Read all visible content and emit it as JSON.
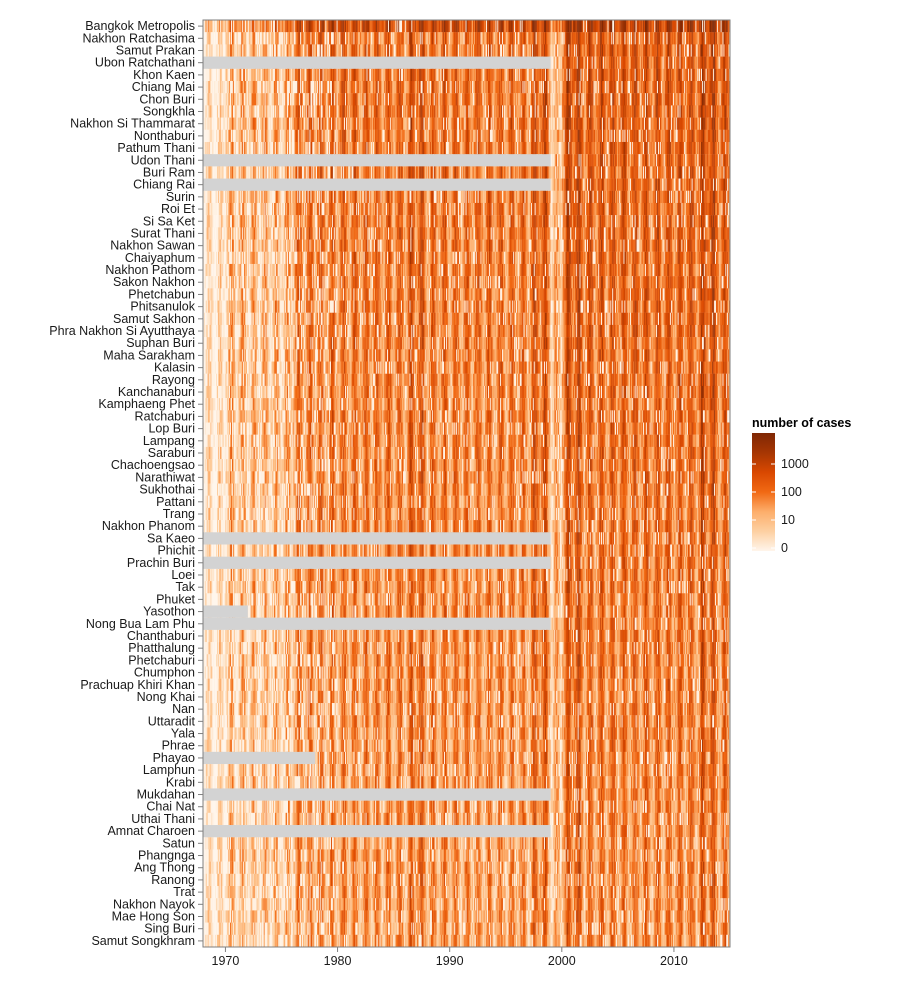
{
  "chart_data": {
    "type": "heatmap",
    "title": "",
    "xlabel": "",
    "ylabel": "",
    "x_range": [
      1968,
      2015
    ],
    "x_ticks": [
      1970,
      1980,
      1990,
      2000,
      2010
    ],
    "provinces": [
      "Bangkok Metropolis",
      "Nakhon Ratchasima",
      "Samut Prakan",
      "Ubon Ratchathani",
      "Khon Kaen",
      "Chiang Mai",
      "Chon Buri",
      "Songkhla",
      "Nakhon Si Thammarat",
      "Nonthaburi",
      "Pathum Thani",
      "Udon Thani",
      "Buri Ram",
      "Chiang Rai",
      "Surin",
      "Roi Et",
      "Si Sa Ket",
      "Surat Thani",
      "Nakhon Sawan",
      "Chaiyaphum",
      "Nakhon Pathom",
      "Sakon Nakhon",
      "Phetchabun",
      "Phitsanulok",
      "Samut Sakhon",
      "Phra Nakhon Si Ayutthaya",
      "Suphan Buri",
      "Maha Sarakham",
      "Kalasin",
      "Rayong",
      "Kanchanaburi",
      "Kamphaeng Phet",
      "Ratchaburi",
      "Lop Buri",
      "Lampang",
      "Saraburi",
      "Chachoengsao",
      "Narathiwat",
      "Sukhothai",
      "Pattani",
      "Trang",
      "Nakhon Phanom",
      "Sa Kaeo",
      "Phichit",
      "Prachin Buri",
      "Loei",
      "Tak",
      "Phuket",
      "Yasothon",
      "Nong Bua Lam Phu",
      "Chanthaburi",
      "Phatthalung",
      "Phetchaburi",
      "Chumphon",
      "Prachuap Khiri Khan",
      "Nong Khai",
      "Nan",
      "Uttaradit",
      "Yala",
      "Phrae",
      "Phayao",
      "Lamphun",
      "Krabi",
      "Mukdahan",
      "Chai Nat",
      "Uthai Thani",
      "Amnat Charoen",
      "Satun",
      "Phangnga",
      "Ang Thong",
      "Ranong",
      "Trat",
      "Nakhon Nayok",
      "Mae Hong Son",
      "Sing Buri",
      "Samut Songkhram"
    ],
    "missing_data_until": {
      "Ubon Ratchathani": 1999,
      "Udon Thani": 1999,
      "Chiang Rai": 1999,
      "Sa Kaeo": 1999,
      "Prachin Buri": 1999,
      "Yasothon": 1972,
      "Nong Bua Lam Phu": 1999,
      "Phayao": 1978,
      "Mukdahan": 1999,
      "Amnat Charoen": 1999
    },
    "legend": {
      "title": "number of cases",
      "scale": "log",
      "labels": [
        "1000",
        "100",
        "10",
        "0"
      ],
      "values": [
        1000,
        100,
        10,
        0
      ],
      "colors": [
        "#fff5eb",
        "#fdd0a2",
        "#fdae6b",
        "#f16913",
        "#d94801",
        "#a63603",
        "#7f2704"
      ]
    },
    "missing_color": "#d3d3d3",
    "grid": false,
    "legend_position": "right"
  }
}
